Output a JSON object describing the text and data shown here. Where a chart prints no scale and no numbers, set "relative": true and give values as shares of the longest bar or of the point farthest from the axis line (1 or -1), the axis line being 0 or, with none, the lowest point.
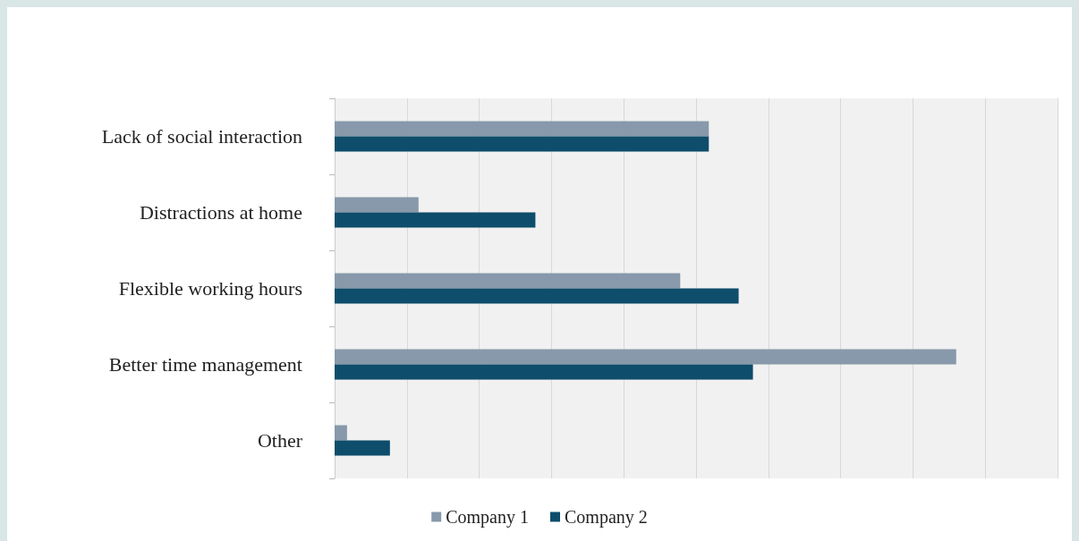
{
  "chart_data": {
    "type": "bar",
    "orientation": "horizontal",
    "relative": true,
    "categories": [
      "Lack of social interaction",
      "Distractions at home",
      "Flexible working hours",
      "Better time management",
      "Other"
    ],
    "series": [
      {
        "name": "Company 1",
        "color": "#8799aa",
        "values": [
          0.602,
          0.135,
          0.556,
          1,
          0.02
        ]
      },
      {
        "name": "Company 2",
        "color": "#0e4d6b",
        "values": [
          0.602,
          0.323,
          0.65,
          0.673,
          0.089
        ]
      }
    ],
    "grid": "x",
    "legend": "bottom"
  }
}
